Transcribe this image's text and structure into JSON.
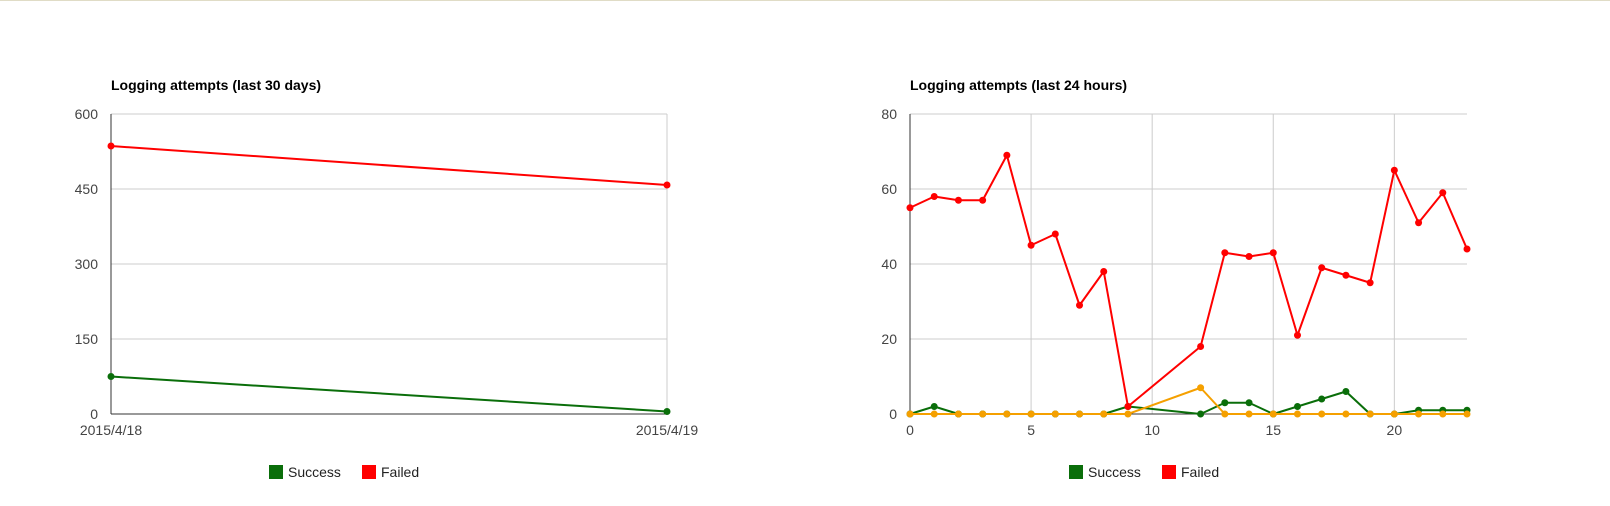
{
  "colors": {
    "success": "#0a6e0a",
    "failed": "#ff0000",
    "third": "#f5a000",
    "grid": "#cccccc",
    "axis": "#333333"
  },
  "chart_data": [
    {
      "type": "line",
      "title": "Logging attempts (last 30 days)",
      "xlabel": "",
      "ylabel": "",
      "categories": [
        "2015/4/18",
        "2015/4/19"
      ],
      "ylim": [
        0,
        600
      ],
      "yticks": [
        0,
        150,
        300,
        450,
        600
      ],
      "grid": true,
      "legend_position": "bottom",
      "series": [
        {
          "name": "Success",
          "color": "#0a6e0a",
          "values": [
            75,
            5
          ]
        },
        {
          "name": "Failed",
          "color": "#ff0000",
          "values": [
            536,
            458
          ]
        }
      ]
    },
    {
      "type": "line",
      "title": "Logging attempts (last 24 hours)",
      "xlabel": "",
      "ylabel": "",
      "xlim": [
        0,
        23
      ],
      "xticks": [
        0,
        5,
        10,
        15,
        20
      ],
      "ylim": [
        0,
        80
      ],
      "yticks": [
        0,
        20,
        40,
        60,
        80
      ],
      "grid": true,
      "legend_position": "bottom",
      "series": [
        {
          "name": "Success",
          "color": "#0a6e0a",
          "points": [
            [
              0,
              0
            ],
            [
              1,
              2
            ],
            [
              2,
              0
            ],
            [
              3,
              0
            ],
            [
              4,
              0
            ],
            [
              5,
              0
            ],
            [
              6,
              0
            ],
            [
              7,
              0
            ],
            [
              8,
              0
            ],
            [
              9,
              2
            ],
            [
              12,
              0
            ],
            [
              13,
              3
            ],
            [
              14,
              3
            ],
            [
              15,
              0
            ],
            [
              16,
              2
            ],
            [
              17,
              4
            ],
            [
              18,
              6
            ],
            [
              19,
              0
            ],
            [
              20,
              0
            ],
            [
              21,
              1
            ],
            [
              22,
              1
            ],
            [
              23,
              1
            ]
          ]
        },
        {
          "name": "Failed",
          "color": "#ff0000",
          "points": [
            [
              0,
              55
            ],
            [
              1,
              58
            ],
            [
              2,
              57
            ],
            [
              3,
              57
            ],
            [
              4,
              69
            ],
            [
              5,
              45
            ],
            [
              6,
              48
            ],
            [
              7,
              29
            ],
            [
              8,
              38
            ],
            [
              9,
              2
            ],
            [
              12,
              18
            ],
            [
              13,
              43
            ],
            [
              14,
              42
            ],
            [
              15,
              43
            ],
            [
              16,
              21
            ],
            [
              17,
              39
            ],
            [
              18,
              37
            ],
            [
              19,
              35
            ],
            [
              20,
              65
            ],
            [
              21,
              51
            ],
            [
              22,
              59
            ],
            [
              23,
              44
            ]
          ]
        },
        {
          "color": "#f5a000",
          "points": [
            [
              0,
              0
            ],
            [
              1,
              0
            ],
            [
              2,
              0
            ],
            [
              3,
              0
            ],
            [
              4,
              0
            ],
            [
              5,
              0
            ],
            [
              6,
              0
            ],
            [
              7,
              0
            ],
            [
              8,
              0
            ],
            [
              9,
              0
            ],
            [
              12,
              7
            ],
            [
              13,
              0
            ],
            [
              14,
              0
            ],
            [
              15,
              0
            ],
            [
              16,
              0
            ],
            [
              17,
              0
            ],
            [
              18,
              0
            ],
            [
              19,
              0
            ],
            [
              20,
              0
            ],
            [
              21,
              0
            ],
            [
              22,
              0
            ],
            [
              23,
              0
            ]
          ]
        }
      ],
      "legend": [
        "Success",
        "Failed"
      ]
    }
  ]
}
